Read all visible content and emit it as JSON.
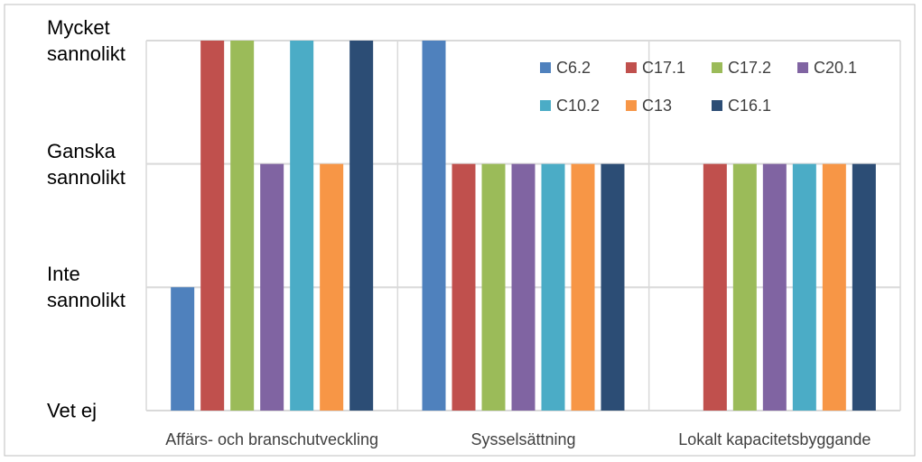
{
  "chart_data": {
    "type": "bar",
    "categories": [
      "Affärs- och branschutveckling",
      "Sysselsättning",
      "Lokalt kapacitetsbyggande"
    ],
    "series": [
      {
        "name": "C6.2",
        "color": "#4f81bd",
        "values": [
          1,
          3,
          0
        ]
      },
      {
        "name": "C17.1",
        "color": "#c0504d",
        "values": [
          3,
          2,
          2
        ]
      },
      {
        "name": "C17.2",
        "color": "#9bbb59",
        "values": [
          3,
          2,
          2
        ]
      },
      {
        "name": "C20.1",
        "color": "#8064a2",
        "values": [
          2,
          2,
          2
        ]
      },
      {
        "name": "C10.2",
        "color": "#4bacc6",
        "values": [
          3,
          2,
          2
        ]
      },
      {
        "name": "C13",
        "color": "#f79646",
        "values": [
          2,
          2,
          2
        ]
      },
      {
        "name": "C16.1",
        "color": "#2c4d75",
        "values": [
          3,
          2,
          2
        ]
      }
    ],
    "ylim": [
      0,
      3
    ],
    "yticks": [
      {
        "value": 0,
        "label": "Vet ej"
      },
      {
        "value": 1,
        "label": "Inte sannolikt"
      },
      {
        "value": 2,
        "label": "Ganska sannolikt"
      },
      {
        "value": 3,
        "label": "Mycket sannolikt"
      }
    ],
    "grid": true,
    "legend": "top-right"
  }
}
